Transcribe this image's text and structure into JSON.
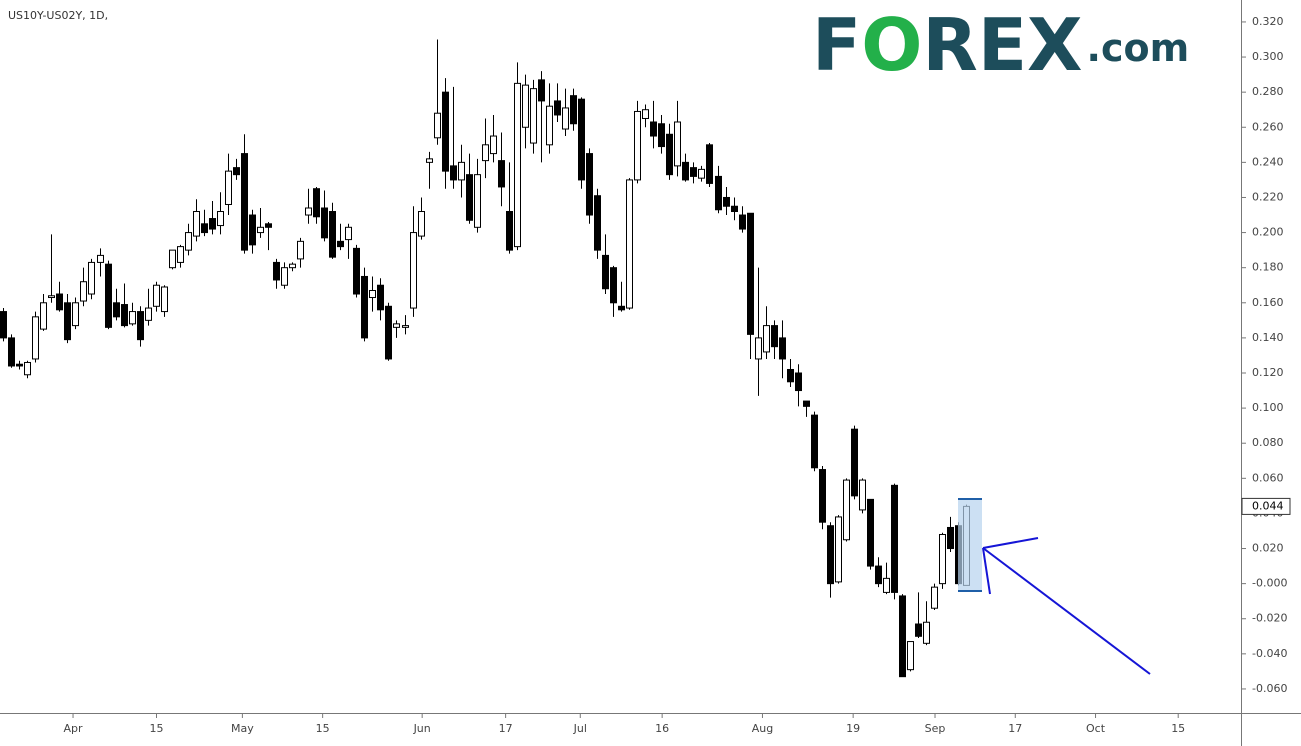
{
  "logo": {
    "first": "F",
    "mark": "O",
    "rest": "REX",
    "suffix": ".com"
  },
  "chart_data": {
    "type": "candlestick",
    "title": "US10Y-US02Y, 1D,",
    "up_color": "#ffffff",
    "down_color": "#000000",
    "outline_color": "#000000",
    "x": [
      0,
      1,
      2,
      3,
      4,
      5,
      6,
      7,
      8,
      9,
      10,
      11,
      12,
      13,
      14,
      15,
      16,
      17,
      18,
      19,
      20,
      21,
      22,
      23,
      24,
      25,
      26,
      27,
      28,
      29,
      30,
      31,
      32,
      33,
      34,
      35,
      36,
      37,
      38,
      39,
      40,
      41,
      42,
      43,
      44,
      45,
      46,
      47,
      48,
      49,
      50,
      51,
      52,
      53,
      54,
      55,
      56,
      57,
      58,
      59,
      60,
      61,
      62,
      63,
      64,
      65,
      66,
      67,
      68,
      69,
      70,
      71,
      72,
      73,
      74,
      75,
      76,
      77,
      78,
      79,
      80,
      81,
      82,
      83,
      84,
      85,
      86,
      87,
      88,
      89,
      90,
      91,
      92,
      93,
      94,
      95,
      96,
      97,
      98,
      99,
      100,
      101,
      102,
      103,
      104,
      105,
      106,
      107,
      108,
      109,
      110,
      111,
      112,
      113,
      114,
      115,
      116,
      117,
      118,
      119,
      120
    ],
    "open": [
      0.155,
      0.14,
      0.125,
      0.119,
      0.128,
      0.145,
      0.163,
      0.165,
      0.16,
      0.147,
      0.161,
      0.165,
      0.183,
      0.182,
      0.16,
      0.159,
      0.148,
      0.155,
      0.15,
      0.158,
      0.155,
      0.18,
      0.183,
      0.19,
      0.198,
      0.205,
      0.208,
      0.204,
      0.216,
      0.237,
      0.245,
      0.21,
      0.2,
      0.205,
      0.183,
      0.17,
      0.18,
      0.185,
      0.21,
      0.225,
      0.214,
      0.212,
      0.195,
      0.196,
      0.191,
      0.175,
      0.163,
      0.17,
      0.158,
      0.146,
      0.146,
      0.157,
      0.198,
      0.24,
      0.254,
      0.28,
      0.238,
      0.23,
      0.233,
      0.203,
      0.241,
      0.245,
      0.241,
      0.212,
      0.192,
      0.26,
      0.251,
      0.287,
      0.25,
      0.275,
      0.259,
      0.278,
      0.276,
      0.245,
      0.221,
      0.187,
      0.18,
      0.158,
      0.157,
      0.23,
      0.265,
      0.263,
      0.262,
      0.256,
      0.238,
      0.24,
      0.237,
      0.231,
      0.25,
      0.232,
      0.22,
      0.215,
      0.21,
      0.211,
      0.128,
      0.132,
      0.147,
      0.14,
      0.122,
      0.12,
      0.104,
      0.096,
      0.065,
      0.033,
      0.001,
      0.025,
      0.088,
      0.042,
      0.048,
      0.01,
      -0.005,
      0.056,
      -0.007,
      -0.049,
      -0.023,
      -0.034,
      -0.014,
      0.0,
      0.032,
      0.033,
      -0.001
    ],
    "high": [
      0.157,
      0.142,
      0.127,
      0.127,
      0.155,
      0.165,
      0.199,
      0.172,
      0.165,
      0.163,
      0.18,
      0.185,
      0.191,
      0.184,
      0.168,
      0.171,
      0.16,
      0.158,
      0.168,
      0.172,
      0.17,
      0.19,
      0.193,
      0.205,
      0.219,
      0.213,
      0.218,
      0.223,
      0.245,
      0.242,
      0.256,
      0.213,
      0.214,
      0.206,
      0.185,
      0.183,
      0.183,
      0.197,
      0.225,
      0.226,
      0.224,
      0.217,
      0.205,
      0.205,
      0.193,
      0.18,
      0.175,
      0.174,
      0.16,
      0.15,
      0.153,
      0.215,
      0.22,
      0.246,
      0.31,
      0.288,
      0.283,
      0.25,
      0.245,
      0.242,
      0.265,
      0.267,
      0.257,
      0.24,
      0.297,
      0.29,
      0.287,
      0.292,
      0.285,
      0.285,
      0.282,
      0.282,
      0.277,
      0.248,
      0.225,
      0.199,
      0.181,
      0.172,
      0.231,
      0.275,
      0.273,
      0.275,
      0.267,
      0.262,
      0.275,
      0.245,
      0.24,
      0.238,
      0.251,
      0.238,
      0.226,
      0.22,
      0.215,
      0.211,
      0.18,
      0.158,
      0.15,
      0.15,
      0.128,
      0.125,
      0.104,
      0.098,
      0.067,
      0.035,
      0.039,
      0.06,
      0.09,
      0.06,
      0.048,
      0.015,
      0.012,
      0.057,
      -0.006,
      -0.033,
      -0.005,
      -0.01,
      0.0,
      0.029,
      0.038,
      0.035,
      0.045
    ],
    "low": [
      0.138,
      0.123,
      0.122,
      0.117,
      0.126,
      0.144,
      0.16,
      0.155,
      0.137,
      0.145,
      0.158,
      0.162,
      0.175,
      0.145,
      0.15,
      0.146,
      0.147,
      0.135,
      0.147,
      0.155,
      0.152,
      0.179,
      0.18,
      0.187,
      0.195,
      0.198,
      0.199,
      0.199,
      0.21,
      0.23,
      0.188,
      0.188,
      0.197,
      0.19,
      0.168,
      0.168,
      0.178,
      0.18,
      0.205,
      0.205,
      0.195,
      0.185,
      0.19,
      0.185,
      0.163,
      0.138,
      0.155,
      0.15,
      0.127,
      0.14,
      0.142,
      0.152,
      0.196,
      0.225,
      0.25,
      0.225,
      0.225,
      0.22,
      0.205,
      0.2,
      0.231,
      0.24,
      0.215,
      0.188,
      0.19,
      0.248,
      0.245,
      0.24,
      0.245,
      0.263,
      0.255,
      0.258,
      0.225,
      0.205,
      0.185,
      0.165,
      0.152,
      0.155,
      0.156,
      0.228,
      0.26,
      0.248,
      0.245,
      0.23,
      0.232,
      0.229,
      0.228,
      0.229,
      0.226,
      0.211,
      0.21,
      0.207,
      0.2,
      0.128,
      0.107,
      0.128,
      0.128,
      0.117,
      0.112,
      0.101,
      0.095,
      0.064,
      0.031,
      -0.008,
      0.0,
      0.024,
      0.048,
      0.04,
      0.008,
      -0.002,
      -0.006,
      -0.009,
      -0.053,
      -0.05,
      -0.031,
      -0.035,
      -0.015,
      -0.003,
      0.018,
      -0.001,
      0.0
    ],
    "close": [
      0.14,
      0.124,
      0.124,
      0.126,
      0.152,
      0.16,
      0.164,
      0.156,
      0.139,
      0.16,
      0.172,
      0.183,
      0.187,
      0.146,
      0.152,
      0.147,
      0.155,
      0.139,
      0.157,
      0.17,
      0.169,
      0.19,
      0.192,
      0.2,
      0.212,
      0.2,
      0.202,
      0.212,
      0.235,
      0.233,
      0.19,
      0.193,
      0.203,
      0.203,
      0.173,
      0.18,
      0.182,
      0.195,
      0.214,
      0.209,
      0.197,
      0.186,
      0.192,
      0.203,
      0.165,
      0.14,
      0.167,
      0.156,
      0.128,
      0.148,
      0.147,
      0.2,
      0.212,
      0.242,
      0.268,
      0.235,
      0.23,
      0.24,
      0.207,
      0.233,
      0.25,
      0.255,
      0.226,
      0.19,
      0.285,
      0.284,
      0.282,
      0.275,
      0.272,
      0.267,
      0.271,
      0.262,
      0.23,
      0.21,
      0.19,
      0.168,
      0.16,
      0.156,
      0.23,
      0.269,
      0.27,
      0.255,
      0.249,
      0.233,
      0.263,
      0.23,
      0.232,
      0.236,
      0.228,
      0.213,
      0.215,
      0.212,
      0.202,
      0.142,
      0.14,
      0.147,
      0.135,
      0.128,
      0.115,
      0.11,
      0.101,
      0.066,
      0.035,
      0.0,
      0.038,
      0.059,
      0.05,
      0.059,
      0.01,
      0.0,
      0.003,
      -0.005,
      -0.053,
      -0.033,
      -0.03,
      -0.022,
      -0.002,
      0.028,
      0.02,
      0.0,
      0.044
    ],
    "xlim": [
      -0.4,
      154.1
    ],
    "xticks": [
      {
        "value": 8.7,
        "label": "Apr"
      },
      {
        "value": 19.1,
        "label": "15"
      },
      {
        "value": 29.8,
        "label": "May"
      },
      {
        "value": 39.8,
        "label": "15"
      },
      {
        "value": 52.2,
        "label": "Jun"
      },
      {
        "value": 62.6,
        "label": "17"
      },
      {
        "value": 71.9,
        "label": "Jul"
      },
      {
        "value": 82.1,
        "label": "16"
      },
      {
        "value": 94.6,
        "label": "Aug"
      },
      {
        "value": 105.9,
        "label": "19"
      },
      {
        "value": 116.1,
        "label": "Sep"
      },
      {
        "value": 126.1,
        "label": "17"
      },
      {
        "value": 136.1,
        "label": "Oct"
      },
      {
        "value": 146.4,
        "label": "15"
      }
    ],
    "ylim": [
      -0.0737,
      0.3325
    ],
    "yticks": [
      {
        "value": 0.32,
        "label": "0.320"
      },
      {
        "value": 0.3,
        "label": "0.300"
      },
      {
        "value": 0.28,
        "label": "0.280"
      },
      {
        "value": 0.26,
        "label": "0.260"
      },
      {
        "value": 0.24,
        "label": "0.240"
      },
      {
        "value": 0.22,
        "label": "0.220"
      },
      {
        "value": 0.2,
        "label": "0.200"
      },
      {
        "value": 0.18,
        "label": "0.180"
      },
      {
        "value": 0.16,
        "label": "0.160"
      },
      {
        "value": 0.14,
        "label": "0.140"
      },
      {
        "value": 0.12,
        "label": "0.120"
      },
      {
        "value": 0.1,
        "label": "0.100"
      },
      {
        "value": 0.08,
        "label": "0.080"
      },
      {
        "value": 0.06,
        "label": "0.060"
      },
      {
        "value": 0.04,
        "label": "0.040"
      },
      {
        "value": 0.02,
        "label": "0.020"
      },
      {
        "value": 0,
        "label": "-0.000"
      },
      {
        "value": -0.02,
        "label": "-0.020"
      },
      {
        "value": -0.04,
        "label": "-0.040"
      },
      {
        "value": -0.06,
        "label": "-0.060"
      }
    ],
    "last_price": {
      "value": 0.044,
      "label": "0.044"
    }
  }
}
